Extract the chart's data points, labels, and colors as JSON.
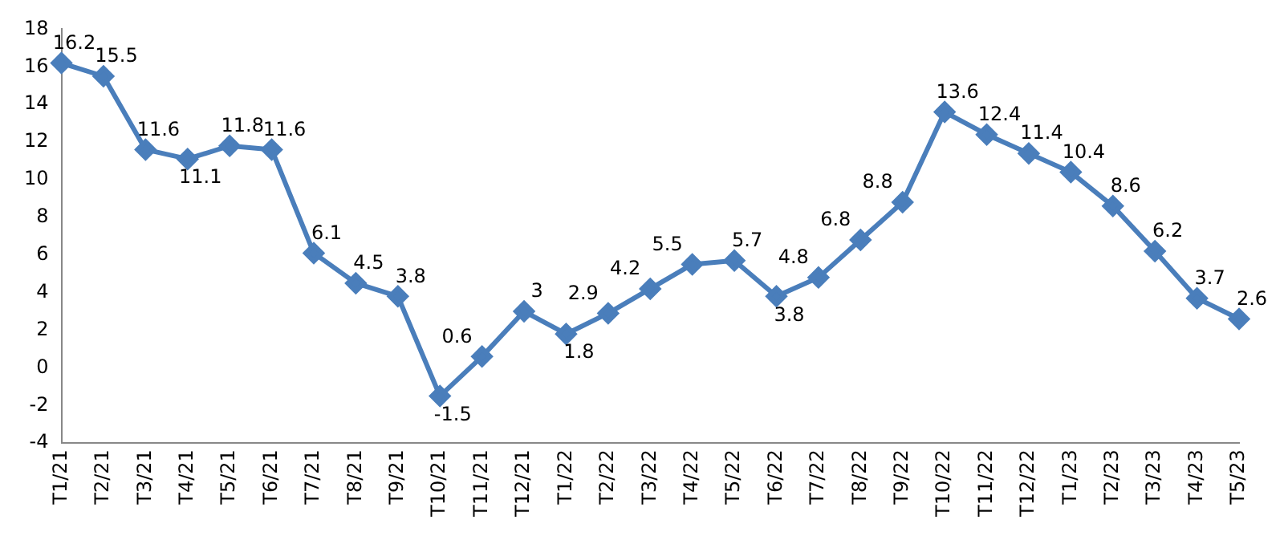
{
  "chart_data": {
    "type": "line",
    "categories": [
      "T1/21",
      "T2/21",
      "T3/21",
      "T4/21",
      "T5/21",
      "T6/21",
      "T7/21",
      "T8/21",
      "T9/21",
      "T10/21",
      "T11/21",
      "T12/21",
      "T1/22",
      "T2/22",
      "T3/22",
      "T4/22",
      "T5/22",
      "T6/22",
      "T7/22",
      "T8/22",
      "T9/22",
      "T10/22",
      "T11/22",
      "T12/22",
      "T1/23",
      "T2/23",
      "T3/23",
      "T4/23",
      "T5/23"
    ],
    "series": [
      {
        "color": "#4a7ebb",
        "values": [
          16.2,
          15.5,
          11.6,
          11.1,
          11.8,
          11.6,
          6.1,
          4.5,
          3.8,
          -1.5,
          0.6,
          3,
          1.8,
          2.9,
          4.2,
          5.5,
          5.7,
          3.8,
          4.8,
          6.8,
          8.8,
          13.6,
          12.4,
          11.4,
          10.4,
          8.6,
          6.2,
          3.7,
          2.6
        ]
      }
    ],
    "ylim": [
      -4,
      18
    ],
    "yticks": [
      -4,
      -2,
      0,
      2,
      4,
      6,
      8,
      10,
      12,
      14,
      16,
      18
    ],
    "grid": false,
    "legend": false,
    "marker": "diamond",
    "line_style": "solid",
    "data_labels": true
  }
}
